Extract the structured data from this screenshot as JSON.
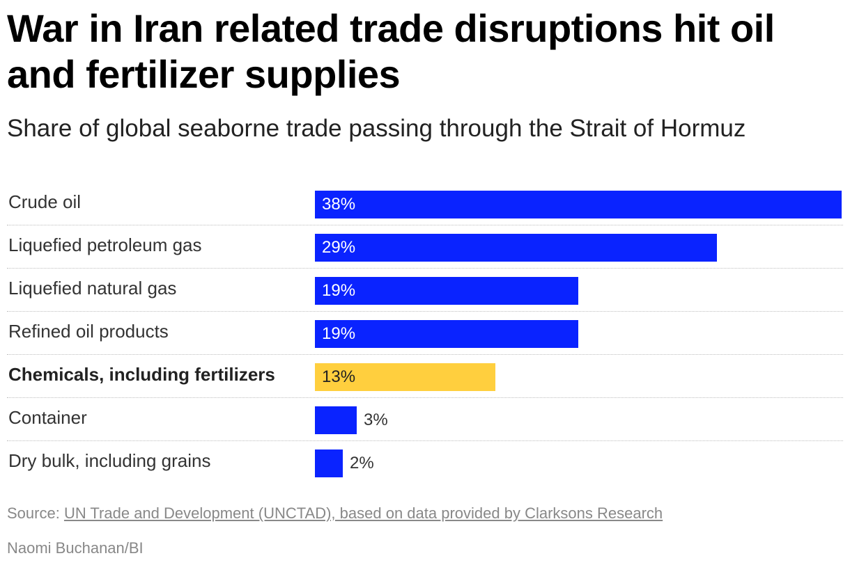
{
  "title": "War in Iran related trade disruptions hit oil and fertilizer supplies",
  "subtitle": "Share of global seaborne trade passing through the Strait of Hormuz",
  "chart_data": {
    "type": "bar",
    "orientation": "horizontal",
    "categories": [
      "Crude oil",
      "Liquefied petroleum gas",
      "Liquefied natural gas",
      "Refined oil products",
      "Chemicals, including fertilizers",
      "Container",
      "Dry bulk, including grains"
    ],
    "values": [
      38,
      29,
      19,
      19,
      13,
      3,
      2
    ],
    "value_labels": [
      "38%",
      "29%",
      "19%",
      "19%",
      "13%",
      "3%",
      "2%"
    ],
    "highlight": [
      false,
      false,
      false,
      false,
      true,
      false,
      false
    ],
    "colors": {
      "bar": "#0a23ff",
      "highlight": "#ffcf3e",
      "label_on_bar": "#ffffff",
      "label_on_highlight": "#222222",
      "label_outside": "#333333"
    },
    "xlim": [
      0,
      38
    ],
    "grid": false,
    "legend": "none"
  },
  "footer": {
    "source_prefix": "Source: ",
    "source_link": "UN Trade and Development (UNCTAD), based on data provided by Clarksons Research",
    "credit": "Naomi Buchanan/BI"
  }
}
